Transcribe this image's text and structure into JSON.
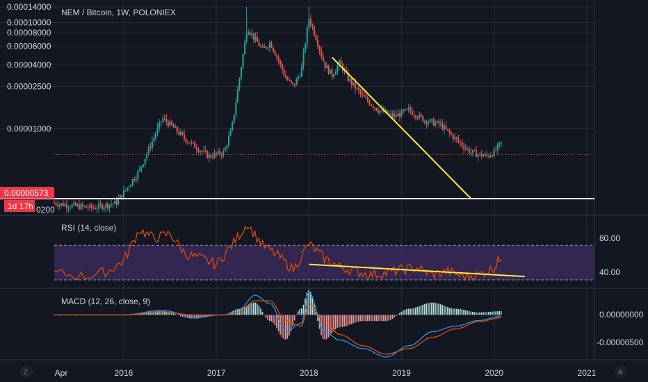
{
  "colors": {
    "background": "#131722",
    "grid": "#2a2e39",
    "up": "#26a69a",
    "down": "#ef5350",
    "trendline": "#ffeb3b",
    "rsi_line": "#e65100",
    "rsi_band": "#3c2a5e",
    "macd_line": "#2196f3",
    "signal_line": "#e65100",
    "price_badge": "#f23645",
    "support_line": "#ffffff"
  },
  "main": {
    "title": "NEM / Bitcoin, 1W, POLONIEX",
    "price_badge": "0.00000573",
    "countdown_badge": "1d 17h",
    "partial_low_label": "0200"
  },
  "rsi_panel": {
    "title": "RSI (14, close)",
    "ticks": [
      "80.00",
      "40.00"
    ]
  },
  "macd_panel": {
    "title": "MACD (12, 26, close, 9)",
    "ticks": [
      "0.00000000",
      "-0.00000500"
    ]
  },
  "footer": {
    "left_icon": "Z",
    "right_icon": "A"
  },
  "chart_data": [
    {
      "type": "candlestick",
      "title": "NEM / Bitcoin, 1W, POLONIEX",
      "scale": "log",
      "y_ticks": [
        "0.00014000",
        "0.00010000",
        "0.00008000",
        "0.00006000",
        "0.00004000",
        "0.00002500",
        "0.00001000"
      ],
      "x_ticks": [
        "Apr",
        "2016",
        "2017",
        "2018",
        "2019",
        "2020",
        "2021"
      ],
      "x_range": [
        "2015-04",
        "2021-02"
      ],
      "close_series": {
        "x": [
          "2015-04",
          "2015-06",
          "2015-09",
          "2015-12",
          "2016-03",
          "2016-06",
          "2016-07",
          "2016-09",
          "2016-12",
          "2017-02",
          "2017-03",
          "2017-04",
          "2017-05",
          "2017-06",
          "2017-07",
          "2017-08",
          "2017-09",
          "2017-10",
          "2017-11",
          "2017-12",
          "2018-01",
          "2018-02",
          "2018-03",
          "2018-04",
          "2018-05",
          "2018-06",
          "2018-08",
          "2018-10",
          "2018-12",
          "2019-02",
          "2019-04",
          "2019-06",
          "2019-08",
          "2019-10",
          "2019-12",
          "2020-01",
          "2020-02"
        ],
        "close": [
          2e-06,
          1.9e-06,
          1.8e-06,
          2e-06,
          4e-06,
          1.25e-05,
          1.1e-05,
          8e-06,
          5.5e-06,
          6e-06,
          1e-05,
          3e-05,
          9e-05,
          7e-05,
          5.5e-05,
          6.5e-05,
          4.5e-05,
          3e-05,
          2.5e-05,
          3.5e-05,
          0.00011,
          7e-05,
          4e-05,
          3.2e-05,
          4.2e-05,
          3e-05,
          2e-05,
          1.5e-05,
          1.3e-05,
          1.5e-05,
          1.2e-05,
          1.1e-05,
          8e-06,
          6e-06,
          5.5e-06,
          6e-06,
          7.5e-06
        ]
      },
      "peaks": [
        {
          "x": "2017-05",
          "high": 0.00014
        },
        {
          "x": "2018-01",
          "high": 0.00014
        }
      ],
      "last_price": 5.73e-06,
      "annotations": [
        "descending yellow trendline from 2018-04 to 2019-10",
        "horizontal white support line near 0.0000022"
      ]
    },
    {
      "type": "line",
      "title": "RSI (14, close)",
      "ylim": [
        22,
        100
      ],
      "y_ticks": [
        80,
        40
      ],
      "band": [
        30,
        70
      ],
      "x": [
        "2015-04",
        "2015-08",
        "2015-11",
        "2016-01",
        "2016-03",
        "2016-05",
        "2016-07",
        "2016-09",
        "2016-11",
        "2017-01",
        "2017-03",
        "2017-05",
        "2017-07",
        "2017-09",
        "2017-11",
        "2018-01",
        "2018-03",
        "2018-05",
        "2018-07",
        "2018-09",
        "2018-11",
        "2019-01",
        "2019-03",
        "2019-05",
        "2019-07",
        "2019-09",
        "2019-11",
        "2020-01",
        "2020-02"
      ],
      "values": [
        38,
        34,
        40,
        52,
        88,
        78,
        84,
        60,
        55,
        48,
        70,
        95,
        70,
        58,
        42,
        72,
        55,
        45,
        40,
        36,
        38,
        42,
        44,
        36,
        40,
        34,
        36,
        44,
        60
      ],
      "annotations": [
        "descending yellow trendline from 2018-01 to 2020-05"
      ]
    },
    {
      "type": "bar",
      "title": "MACD (12, 26, close, 9)",
      "ylim": [
        -8e-06,
        4.5e-06
      ],
      "y_ticks": [
        0.0,
        -5e-06
      ],
      "x": [
        "2015-04",
        "2016-01",
        "2016-06",
        "2016-10",
        "2017-02",
        "2017-04",
        "2017-06",
        "2017-08",
        "2017-10",
        "2017-12",
        "2018-01",
        "2018-03",
        "2018-05",
        "2018-08",
        "2018-11",
        "2019-02",
        "2019-05",
        "2019-08",
        "2019-11",
        "2020-02"
      ],
      "macd": [
        0.0,
        0.0,
        8e-07,
        -3e-07,
        0.0,
        1e-06,
        3.5e-06,
        2e-06,
        -3e-06,
        -1.5e-06,
        4e-06,
        -3e-06,
        -4.5e-06,
        -6e-06,
        -7.5e-06,
        -5.5e-06,
        -3e-06,
        -2e-06,
        -1e-06,
        -2e-07
      ],
      "signal": [
        0.0,
        0.0,
        5e-07,
        0.0,
        0.0,
        5e-07,
        2.5e-06,
        2.5e-06,
        -1e-06,
        -2e-06,
        2e-06,
        -1e-06,
        -3.5e-06,
        -5.5e-06,
        -7e-06,
        -6e-06,
        -4e-06,
        -2.5e-06,
        -1.2e-06,
        -5e-07
      ]
    }
  ]
}
